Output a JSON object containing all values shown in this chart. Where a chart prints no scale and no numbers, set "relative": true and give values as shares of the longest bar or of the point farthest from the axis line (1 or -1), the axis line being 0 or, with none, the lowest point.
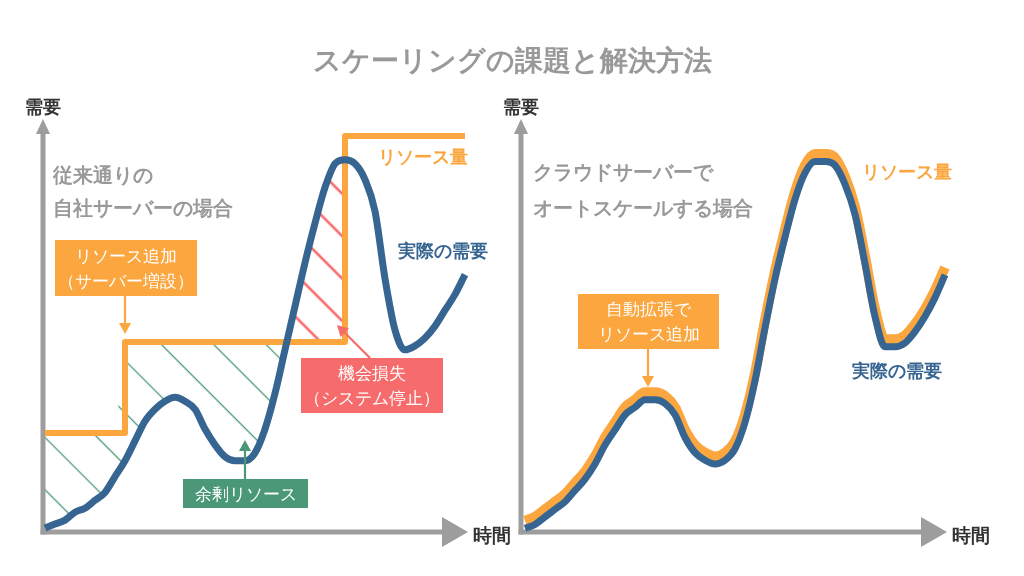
{
  "chart_data": [
    {
      "type": "line",
      "title": "スケーリングの課題と解決方法",
      "xlabel": "時間",
      "ylabel": "需要",
      "relative": true,
      "categories": [
        null,
        null,
        null,
        null,
        null,
        null,
        null,
        null,
        null,
        null,
        null,
        null,
        null,
        null,
        null,
        null,
        null,
        null,
        null,
        null,
        null,
        null,
        null,
        null,
        null,
        null,
        null,
        null,
        null,
        null,
        null,
        null,
        null,
        null,
        null,
        null,
        null,
        null,
        null,
        null,
        null,
        null,
        null
      ],
      "series": [
        {
          "name": "リソース量",
          "type": "step",
          "color": "#fba63f",
          "values": [
            0.25,
            0.25,
            0.25,
            0.25,
            0.25,
            0.25,
            0.25,
            0.25,
            0.48,
            0.48,
            0.48,
            0.48,
            0.48,
            0.48,
            0.48,
            0.48,
            0.48,
            0.48,
            0.48,
            0.48,
            0.48,
            0.48,
            0.48,
            0.48,
            0.48,
            0.48,
            0.48,
            0.48,
            0.48,
            0.48,
            1,
            1,
            1,
            1,
            1,
            1,
            1,
            1,
            1,
            1,
            1,
            1,
            1
          ]
        },
        {
          "name": "実際の需要",
          "color": "#376591",
          "values": [
            0.01,
            0.02,
            0.03,
            0.05,
            0.06,
            0.08,
            0.1,
            0.14,
            0.18,
            0.23,
            0.28,
            0.31,
            0.33,
            0.34,
            0.33,
            0.31,
            0.26,
            0.22,
            0.19,
            0.18,
            0.18,
            0.2,
            0.26,
            0.35,
            0.46,
            0.57,
            0.68,
            0.78,
            0.87,
            0.93,
            0.94,
            0.93,
            0.89,
            0.81,
            0.64,
            0.51,
            0.46,
            0.47,
            0.49,
            0.52,
            0.56,
            0.6,
            0.65
          ]
        },
        {
          "color": "#4a9878",
          "values": [
            null,
            null,
            null,
            null,
            null,
            null,
            null,
            null,
            null,
            null,
            null,
            null,
            null,
            null,
            null,
            null,
            null,
            null,
            null,
            null,
            null,
            null,
            null,
            null,
            null,
            null,
            null,
            null,
            null,
            null,
            null,
            null,
            null,
            null,
            null,
            null,
            null,
            null,
            null,
            null,
            null,
            null,
            null
          ],
          "lower": [
            0.01,
            0.02,
            0.03,
            0.05,
            0.06,
            0.08,
            0.1,
            0.14,
            0.18,
            0.23,
            0.28,
            0.31,
            0.33,
            0.34,
            0.33,
            0.31,
            0.26,
            0.22,
            0.19,
            0.18,
            0.18,
            0.2,
            0.26,
            0.35,
            0.46,
            null,
            null,
            null,
            null,
            null,
            null,
            null,
            null,
            null,
            null,
            null,
            null,
            null,
            null,
            null,
            null,
            null,
            null
          ],
          "upper": [
            0.25,
            0.25,
            0.25,
            0.25,
            0.25,
            0.25,
            0.25,
            0.25,
            0.48,
            0.48,
            0.48,
            0.48,
            0.48,
            0.48,
            0.48,
            0.48,
            0.48,
            0.48,
            0.48,
            0.48,
            0.48,
            0.48,
            0.48,
            0.48,
            0.48,
            null,
            null,
            null,
            null,
            null,
            null,
            null,
            null,
            null,
            null,
            null,
            null,
            null,
            null,
            null,
            null,
            null,
            null
          ]
        },
        {
          "color": "#f66b6b",
          "values": [
            null,
            null,
            null,
            null,
            null,
            null,
            null,
            null,
            null,
            null,
            null,
            null,
            null,
            null,
            null,
            null,
            null,
            null,
            null,
            null,
            null,
            null,
            null,
            null,
            null,
            null,
            null,
            null,
            null,
            null,
            null,
            null,
            null,
            null,
            null,
            null,
            null,
            null,
            null,
            null,
            null,
            null,
            null
          ],
          "lower": [
            null,
            null,
            null,
            null,
            null,
            null,
            null,
            null,
            null,
            null,
            null,
            null,
            null,
            null,
            null,
            null,
            null,
            null,
            null,
            null,
            null,
            null,
            null,
            null,
            null,
            0.48,
            0.48,
            0.48,
            0.48,
            0.48,
            0.48,
            null,
            null,
            null,
            null,
            null,
            null,
            null,
            null,
            null,
            null,
            null,
            null
          ],
          "upper": [
            null,
            null,
            null,
            null,
            null,
            null,
            null,
            null,
            null,
            null,
            null,
            null,
            null,
            null,
            null,
            null,
            null,
            null,
            null,
            null,
            null,
            null,
            null,
            null,
            null,
            0.57,
            0.68,
            0.78,
            0.87,
            0.93,
            0.94,
            null,
            null,
            null,
            null,
            null,
            null,
            null,
            null,
            null,
            null,
            null,
            null
          ]
        }
      ],
      "annotations": [
        "従来通りの自社サーバーの場合",
        "リソース追加（サーバー増設）",
        "余剰リソース",
        "機会損失（システム停止）"
      ]
    },
    {
      "type": "line",
      "xlabel": "時間",
      "ylabel": "需要",
      "relative": true,
      "categories": [
        null,
        null,
        null,
        null,
        null,
        null,
        null,
        null,
        null,
        null,
        null,
        null,
        null,
        null,
        null,
        null,
        null,
        null,
        null,
        null,
        null,
        null,
        null,
        null,
        null,
        null,
        null,
        null,
        null,
        null,
        null,
        null,
        null,
        null,
        null,
        null,
        null,
        null,
        null,
        null,
        null,
        null,
        null
      ],
      "series": [
        {
          "name": "リソース量",
          "color": "#fba63f",
          "values": [
            0.03,
            0.04,
            0.06,
            0.08,
            0.1,
            0.13,
            0.16,
            0.2,
            0.25,
            0.29,
            0.33,
            0.35,
            0.37,
            0.37,
            0.36,
            0.33,
            0.27,
            0.23,
            0.21,
            0.2,
            0.21,
            0.24,
            0.31,
            0.42,
            0.56,
            0.69,
            0.8,
            0.9,
            0.97,
            1.0,
            1.0,
            0.99,
            0.94,
            0.86,
            0.73,
            0.59,
            0.51,
            0.51,
            0.52,
            0.55,
            0.59,
            0.64,
            0.7
          ]
        },
        {
          "name": "実際の需要",
          "color": "#376591",
          "values": [
            0.01,
            0.02,
            0.04,
            0.06,
            0.08,
            0.11,
            0.14,
            0.18,
            0.23,
            0.27,
            0.31,
            0.33,
            0.35,
            0.35,
            0.34,
            0.31,
            0.25,
            0.21,
            0.19,
            0.18,
            0.19,
            0.22,
            0.29,
            0.4,
            0.54,
            0.67,
            0.78,
            0.88,
            0.95,
            0.98,
            0.98,
            0.97,
            0.92,
            0.84,
            0.71,
            0.57,
            0.49,
            0.49,
            0.5,
            0.53,
            0.57,
            0.62,
            0.68
          ]
        }
      ],
      "annotations": [
        "クラウドサーバーでオートスケールする場合",
        "自動拡張でリソース追加"
      ]
    }
  ]
}
